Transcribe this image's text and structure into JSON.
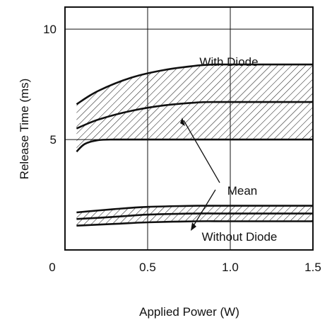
{
  "chart_data": {
    "type": "line",
    "xlabel": "Applied Power (W)",
    "ylabel": "Release Time (ms)",
    "xlim": [
      0,
      1.5
    ],
    "ylim": [
      0,
      11
    ],
    "x_ticks": [
      "0",
      "0.5",
      "1.0",
      "1.5"
    ],
    "y_ticks": [
      {
        "value": 5,
        "label": "5"
      },
      {
        "value": 10,
        "label": "10"
      }
    ],
    "grid": true,
    "annotations": [
      "With Diode",
      "Mean",
      "Without Diode"
    ],
    "series": [
      {
        "group": "with-diode",
        "role": "upper",
        "x": [
          0.07,
          0.2,
          0.4,
          0.6,
          0.8,
          0.9,
          1.0,
          1.2,
          1.5
        ],
        "y": [
          6.6,
          7.2,
          7.8,
          8.15,
          8.35,
          8.4,
          8.4,
          8.4,
          8.4
        ]
      },
      {
        "group": "with-diode",
        "role": "mean",
        "x": [
          0.07,
          0.2,
          0.4,
          0.6,
          0.8,
          0.9,
          1.0,
          1.2,
          1.5
        ],
        "y": [
          5.5,
          5.9,
          6.3,
          6.55,
          6.68,
          6.7,
          6.7,
          6.7,
          6.7
        ]
      },
      {
        "group": "with-diode",
        "role": "lower",
        "x": [
          0.07,
          0.12,
          0.2,
          0.3,
          0.5,
          0.8,
          1.0,
          1.5
        ],
        "y": [
          4.45,
          4.8,
          4.97,
          5.0,
          5.0,
          5.0,
          5.0,
          5.0
        ]
      },
      {
        "group": "without-diode",
        "role": "upper",
        "x": [
          0.07,
          0.3,
          0.5,
          0.8,
          1.0,
          1.5
        ],
        "y": [
          1.7,
          1.85,
          1.95,
          2.0,
          2.0,
          2.0
        ]
      },
      {
        "group": "without-diode",
        "role": "mean",
        "x": [
          0.07,
          0.3,
          0.5,
          0.8,
          1.0,
          1.5
        ],
        "y": [
          1.4,
          1.5,
          1.6,
          1.65,
          1.65,
          1.65
        ]
      },
      {
        "group": "without-diode",
        "role": "lower",
        "x": [
          0.07,
          0.3,
          0.5,
          0.8,
          1.0,
          1.5
        ],
        "y": [
          1.1,
          1.18,
          1.25,
          1.3,
          1.3,
          1.3
        ]
      }
    ]
  }
}
